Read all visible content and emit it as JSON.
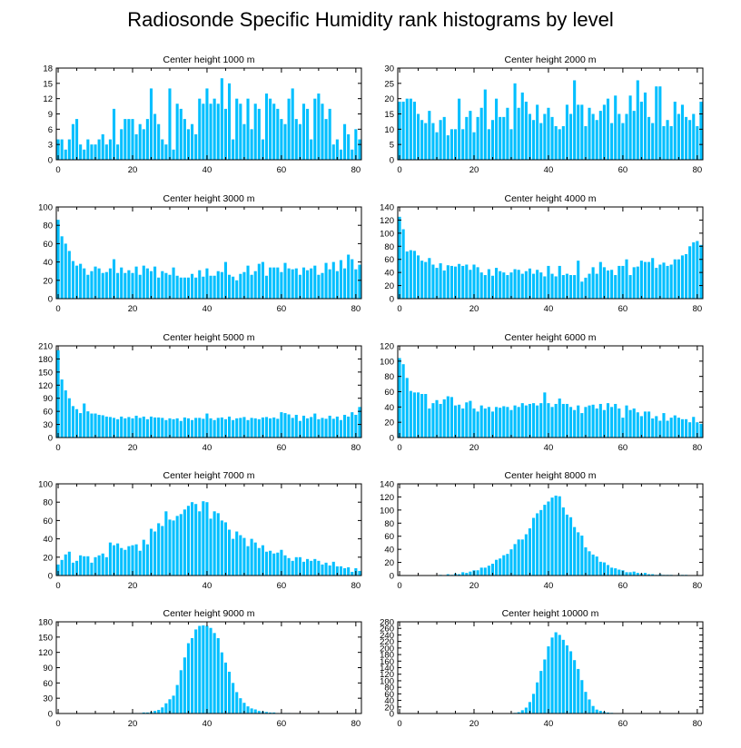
{
  "figure_title": "Radiosonde Specific Humidity rank histograms by level",
  "colors": {
    "bar": "#00bfff",
    "axis": "#000000",
    "background": "#ffffff"
  },
  "chart_data": [
    {
      "type": "bar",
      "title": "Center height 1000 m",
      "ylim": [
        0,
        18
      ],
      "yticks": [
        "0",
        "3",
        "6",
        "9",
        "12",
        "15",
        "18"
      ],
      "ytick_values": [
        0,
        3,
        6,
        9,
        12,
        15,
        18
      ],
      "xlim": [
        -0.5,
        81.5
      ],
      "xticks": [
        "0",
        "20",
        "40",
        "60",
        "80"
      ],
      "xtick_values": [
        0,
        20,
        40,
        60,
        80
      ],
      "values": [
        4,
        4,
        2,
        4,
        7,
        8,
        3,
        2,
        4,
        3,
        3,
        4,
        5,
        3,
        4,
        10,
        3,
        6,
        8,
        8,
        8,
        5,
        7,
        6,
        8,
        14,
        9,
        7,
        4,
        3,
        14,
        2,
        11,
        10,
        8,
        6,
        7,
        5,
        12,
        11,
        14,
        11,
        12,
        11,
        16,
        10,
        15,
        4,
        12,
        11,
        7,
        12,
        6,
        11,
        10,
        4,
        13,
        12,
        11,
        10,
        8,
        7,
        12,
        14,
        8,
        7,
        11,
        10,
        4,
        12,
        13,
        11,
        8,
        10,
        3,
        4,
        2,
        7,
        5,
        2,
        6,
        4
      ]
    },
    {
      "type": "bar",
      "title": "Center height 2000 m",
      "ylim": [
        0,
        30
      ],
      "yticks": [
        "0",
        "5",
        "10",
        "15",
        "20",
        "25",
        "30"
      ],
      "ytick_values": [
        0,
        5,
        10,
        15,
        20,
        25,
        30
      ],
      "xlim": [
        -0.5,
        81.5
      ],
      "xticks": [
        "0",
        "20",
        "40",
        "60",
        "80"
      ],
      "xtick_values": [
        0,
        20,
        40,
        60,
        80
      ],
      "values": [
        19,
        19,
        20,
        20,
        19,
        15,
        13,
        12,
        16,
        12,
        9,
        13,
        14,
        8,
        10,
        10,
        20,
        10,
        14,
        16,
        9,
        14,
        17,
        23,
        10,
        13,
        20,
        14,
        14,
        17,
        10,
        25,
        17,
        22,
        19,
        15,
        13,
        18,
        12,
        15,
        17,
        14,
        11,
        10,
        11,
        18,
        15,
        26,
        18,
        18,
        11,
        17,
        15,
        13,
        16,
        18,
        20,
        12,
        21,
        15,
        12,
        15,
        21,
        16,
        26,
        19,
        22,
        14,
        12,
        24,
        24,
        11,
        13,
        11,
        19,
        15,
        18,
        14,
        13,
        15,
        11,
        19
      ]
    },
    {
      "type": "bar",
      "title": "Center height 3000 m",
      "ylim": [
        0,
        100
      ],
      "yticks": [
        "0",
        "20",
        "40",
        "60",
        "80",
        "100"
      ],
      "ytick_values": [
        0,
        20,
        40,
        60,
        80,
        100
      ],
      "xlim": [
        -0.5,
        81.5
      ],
      "xticks": [
        "0",
        "20",
        "40",
        "60",
        "80"
      ],
      "xtick_values": [
        0,
        20,
        40,
        60,
        80
      ],
      "values": [
        86,
        68,
        60,
        52,
        41,
        36,
        38,
        33,
        26,
        30,
        35,
        33,
        28,
        29,
        33,
        43,
        28,
        34,
        28,
        31,
        28,
        35,
        26,
        36,
        33,
        30,
        35,
        23,
        30,
        28,
        26,
        34,
        25,
        23,
        23,
        23,
        27,
        23,
        31,
        24,
        33,
        25,
        25,
        30,
        29,
        40,
        26,
        24,
        20,
        27,
        29,
        36,
        26,
        30,
        38,
        40,
        25,
        34,
        34,
        34,
        29,
        39,
        33,
        32,
        33,
        26,
        34,
        31,
        33,
        36,
        26,
        28,
        39,
        32,
        40,
        30,
        42,
        33,
        48,
        43,
        32,
        37
      ]
    },
    {
      "type": "bar",
      "title": "Center height 4000 m",
      "ylim": [
        0,
        140
      ],
      "yticks": [
        "0",
        "20",
        "40",
        "60",
        "80",
        "100",
        "120",
        "140"
      ],
      "ytick_values": [
        0,
        20,
        40,
        60,
        80,
        100,
        120,
        140
      ],
      "xlim": [
        -0.5,
        81.5
      ],
      "xticks": [
        "0",
        "20",
        "40",
        "60",
        "80"
      ],
      "xtick_values": [
        0,
        20,
        40,
        60,
        80
      ],
      "values": [
        125,
        106,
        72,
        74,
        73,
        66,
        58,
        56,
        62,
        52,
        47,
        54,
        43,
        51,
        50,
        49,
        53,
        50,
        52,
        44,
        52,
        48,
        40,
        36,
        45,
        35,
        47,
        42,
        40,
        36,
        40,
        45,
        44,
        38,
        42,
        46,
        38,
        44,
        40,
        34,
        50,
        38,
        34,
        50,
        36,
        38,
        36,
        36,
        58,
        26,
        32,
        38,
        48,
        38,
        56,
        48,
        43,
        44,
        36,
        50,
        50,
        60,
        36,
        48,
        49,
        58,
        56,
        56,
        62,
        47,
        52,
        55,
        50,
        52,
        60,
        60,
        66,
        68,
        80,
        86,
        88,
        82
      ]
    },
    {
      "type": "bar",
      "title": "Center height 5000 m",
      "ylim": [
        0,
        210
      ],
      "yticks": [
        "0",
        "30",
        "60",
        "90",
        "120",
        "150",
        "180",
        "210"
      ],
      "ytick_values": [
        0,
        30,
        60,
        90,
        120,
        150,
        180,
        210
      ],
      "xlim": [
        -0.5,
        81.5
      ],
      "xticks": [
        "0",
        "20",
        "40",
        "60",
        "80"
      ],
      "xtick_values": [
        0,
        20,
        40,
        60,
        80
      ],
      "values": [
        200,
        133,
        108,
        90,
        72,
        65,
        56,
        78,
        60,
        55,
        55,
        52,
        51,
        48,
        47,
        45,
        42,
        48,
        44,
        47,
        44,
        50,
        45,
        48,
        42,
        48,
        46,
        46,
        45,
        40,
        44,
        42,
        44,
        38,
        46,
        44,
        40,
        45,
        45,
        43,
        55,
        44,
        40,
        45,
        46,
        42,
        48,
        40,
        44,
        45,
        47,
        40,
        45,
        44,
        42,
        46,
        47,
        44,
        46,
        43,
        58,
        56,
        53,
        45,
        52,
        38,
        50,
        44,
        47,
        55,
        42,
        45,
        43,
        50,
        43,
        48,
        40,
        52,
        48,
        58,
        52,
        70
      ]
    },
    {
      "type": "bar",
      "title": "Center height 6000 m",
      "ylim": [
        0,
        120
      ],
      "yticks": [
        "0",
        "20",
        "40",
        "60",
        "80",
        "100",
        "120"
      ],
      "ytick_values": [
        0,
        20,
        40,
        60,
        80,
        100,
        120
      ],
      "xlim": [
        -0.5,
        81.5
      ],
      "xticks": [
        "0",
        "20",
        "40",
        "60",
        "80"
      ],
      "xtick_values": [
        0,
        20,
        40,
        60,
        80
      ],
      "values": [
        104,
        96,
        78,
        61,
        59,
        59,
        57,
        57,
        38,
        45,
        49,
        44,
        50,
        54,
        53,
        42,
        43,
        38,
        46,
        48,
        38,
        34,
        42,
        38,
        40,
        34,
        40,
        39,
        41,
        40,
        36,
        42,
        40,
        45,
        42,
        44,
        45,
        42,
        45,
        59,
        45,
        40,
        44,
        51,
        44,
        44,
        40,
        36,
        42,
        32,
        40,
        42,
        43,
        38,
        44,
        36,
        45,
        40,
        44,
        38,
        26,
        42,
        36,
        38,
        33,
        28,
        34,
        34,
        25,
        28,
        22,
        32,
        22,
        26,
        29,
        26,
        24,
        24,
        20,
        27,
        20,
        18
      ]
    },
    {
      "type": "bar",
      "title": "Center height 7000 m",
      "ylim": [
        0,
        100
      ],
      "yticks": [
        "0",
        "20",
        "40",
        "60",
        "80",
        "100"
      ],
      "ytick_values": [
        0,
        20,
        40,
        60,
        80,
        100
      ],
      "xlim": [
        -0.5,
        81.5
      ],
      "xticks": [
        "0",
        "20",
        "40",
        "60",
        "80"
      ],
      "xtick_values": [
        0,
        20,
        40,
        60,
        80
      ],
      "values": [
        12,
        17,
        23,
        26,
        14,
        16,
        22,
        21,
        21,
        14,
        20,
        22,
        24,
        20,
        36,
        33,
        35,
        30,
        28,
        32,
        33,
        34,
        27,
        39,
        34,
        51,
        48,
        57,
        54,
        70,
        61,
        60,
        65,
        67,
        72,
        76,
        80,
        78,
        70,
        81,
        80,
        62,
        70,
        68,
        60,
        58,
        50,
        40,
        48,
        44,
        41,
        32,
        40,
        36,
        30,
        33,
        26,
        27,
        24,
        25,
        28,
        22,
        19,
        16,
        20,
        20,
        15,
        18,
        16,
        18,
        16,
        12,
        14,
        11,
        15,
        10,
        10,
        8,
        9,
        4,
        8,
        5
      ]
    },
    {
      "type": "bar",
      "title": "Center height 8000 m",
      "ylim": [
        0,
        140
      ],
      "yticks": [
        "0",
        "20",
        "40",
        "60",
        "80",
        "100",
        "120",
        "140"
      ],
      "ytick_values": [
        0,
        20,
        40,
        60,
        80,
        100,
        120,
        140
      ],
      "xlim": [
        -0.5,
        81.5
      ],
      "xticks": [
        "0",
        "20",
        "40",
        "60",
        "80"
      ],
      "xtick_values": [
        0,
        20,
        40,
        60,
        80
      ],
      "values": [
        0,
        0,
        0,
        0,
        0,
        0,
        0,
        0,
        0,
        0,
        0,
        1,
        0,
        2,
        1,
        3,
        2,
        5,
        4,
        6,
        8,
        8,
        12,
        12,
        15,
        18,
        24,
        26,
        31,
        33,
        40,
        48,
        55,
        55,
        63,
        72,
        88,
        95,
        100,
        108,
        113,
        119,
        122,
        121,
        104,
        93,
        89,
        74,
        66,
        61,
        43,
        37,
        32,
        29,
        21,
        20,
        16,
        12,
        11,
        9,
        8,
        5,
        5,
        6,
        4,
        3,
        4,
        2,
        2,
        1,
        2,
        1,
        1,
        1,
        0,
        1,
        1,
        1,
        0,
        0,
        0,
        0
      ]
    },
    {
      "type": "bar",
      "title": "Center height 9000 m",
      "ylim": [
        0,
        180
      ],
      "yticks": [
        "0",
        "30",
        "60",
        "90",
        "120",
        "150",
        "180"
      ],
      "ytick_values": [
        0,
        30,
        60,
        90,
        120,
        150,
        180
      ],
      "xlim": [
        -0.5,
        81.5
      ],
      "xticks": [
        "0",
        "20",
        "40",
        "60",
        "80"
      ],
      "xtick_values": [
        0,
        20,
        40,
        60,
        80
      ],
      "values": [
        0,
        0,
        0,
        0,
        0,
        0,
        0,
        0,
        0,
        0,
        0,
        0,
        0,
        0,
        0,
        0,
        0,
        0,
        0,
        0,
        1,
        1,
        1,
        2,
        2,
        3,
        5,
        7,
        12,
        20,
        28,
        35,
        56,
        85,
        110,
        138,
        148,
        165,
        172,
        173,
        172,
        168,
        158,
        148,
        120,
        100,
        82,
        60,
        42,
        30,
        21,
        14,
        10,
        8,
        5,
        4,
        3,
        2,
        2,
        1,
        1,
        1,
        1,
        0,
        0,
        0,
        0,
        0,
        0,
        0,
        0,
        0,
        0,
        0,
        0,
        0,
        0,
        0,
        0,
        0,
        0,
        0
      ]
    },
    {
      "type": "bar",
      "title": "Center height 10000 m",
      "ylim": [
        0,
        280
      ],
      "yticks": [
        "0",
        "20",
        "40",
        "60",
        "80",
        "100",
        "120",
        "140",
        "160",
        "180",
        "200",
        "220",
        "240",
        "260",
        "280"
      ],
      "ytick_values": [
        0,
        20,
        40,
        60,
        80,
        100,
        120,
        140,
        160,
        180,
        200,
        220,
        240,
        260,
        280
      ],
      "xlim": [
        -0.5,
        81.5
      ],
      "xticks": [
        "0",
        "20",
        "40",
        "60",
        "80"
      ],
      "xtick_values": [
        0,
        20,
        40,
        60,
        80
      ],
      "values": [
        0,
        0,
        0,
        0,
        0,
        0,
        0,
        0,
        0,
        0,
        0,
        0,
        0,
        0,
        0,
        0,
        0,
        0,
        0,
        0,
        0,
        0,
        0,
        0,
        0,
        0,
        0,
        0,
        0,
        1,
        1,
        2,
        4,
        10,
        18,
        35,
        60,
        95,
        130,
        165,
        205,
        232,
        248,
        240,
        225,
        208,
        190,
        163,
        136,
        102,
        66,
        43,
        23,
        12,
        8,
        5,
        3,
        2,
        1,
        1,
        1,
        0,
        0,
        0,
        0,
        0,
        0,
        0,
        0,
        0,
        0,
        0,
        0,
        0,
        0,
        0,
        0,
        0,
        0,
        0,
        0,
        0
      ]
    }
  ]
}
